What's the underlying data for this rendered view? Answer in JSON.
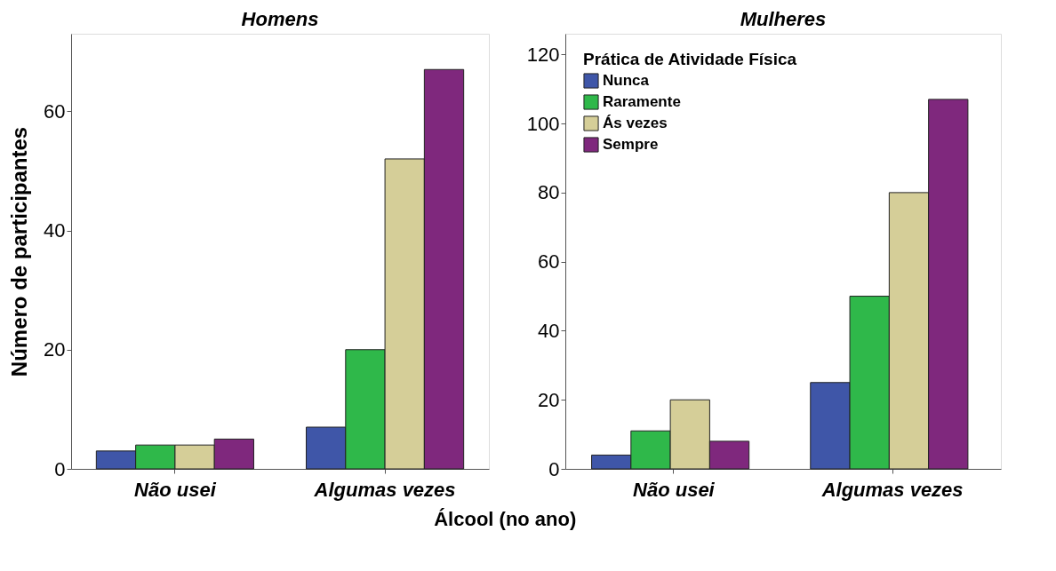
{
  "chart_data": [
    {
      "type": "bar",
      "title": "Homens",
      "ylabel": "Número de participantes",
      "xlabel": "Álcool (no ano)",
      "categories": [
        "Não usei",
        "Algumas vezes"
      ],
      "series": [
        {
          "color": "#3f56a8",
          "values": [
            3,
            7
          ]
        },
        {
          "color": "#2fb84a",
          "values": [
            4,
            20
          ]
        },
        {
          "color": "#d5ce98",
          "values": [
            4,
            52
          ]
        },
        {
          "color": "#7f287d",
          "values": [
            5,
            67
          ]
        }
      ],
      "ylim": [
        0,
        73
      ],
      "yticks": [
        0,
        20,
        40,
        60
      ],
      "grid": false,
      "legend": false
    },
    {
      "type": "bar",
      "title": "Mulheres",
      "legend_title": "Prática de Atividade Física",
      "categories": [
        "Não usei",
        "Algumas vezes"
      ],
      "series": [
        {
          "name": "Nunca",
          "color": "#3f56a8",
          "values": [
            4,
            25
          ]
        },
        {
          "name": "Raramente",
          "color": "#2fb84a",
          "values": [
            11,
            50
          ]
        },
        {
          "name": "Ás vezes",
          "color": "#d5ce98",
          "values": [
            20,
            80
          ]
        },
        {
          "name": "Sempre",
          "color": "#7f287d",
          "values": [
            8,
            107
          ]
        }
      ],
      "ylim": [
        0,
        126
      ],
      "yticks": [
        0,
        20,
        40,
        60,
        80,
        100,
        120
      ],
      "grid": false,
      "legend": "top left"
    }
  ]
}
